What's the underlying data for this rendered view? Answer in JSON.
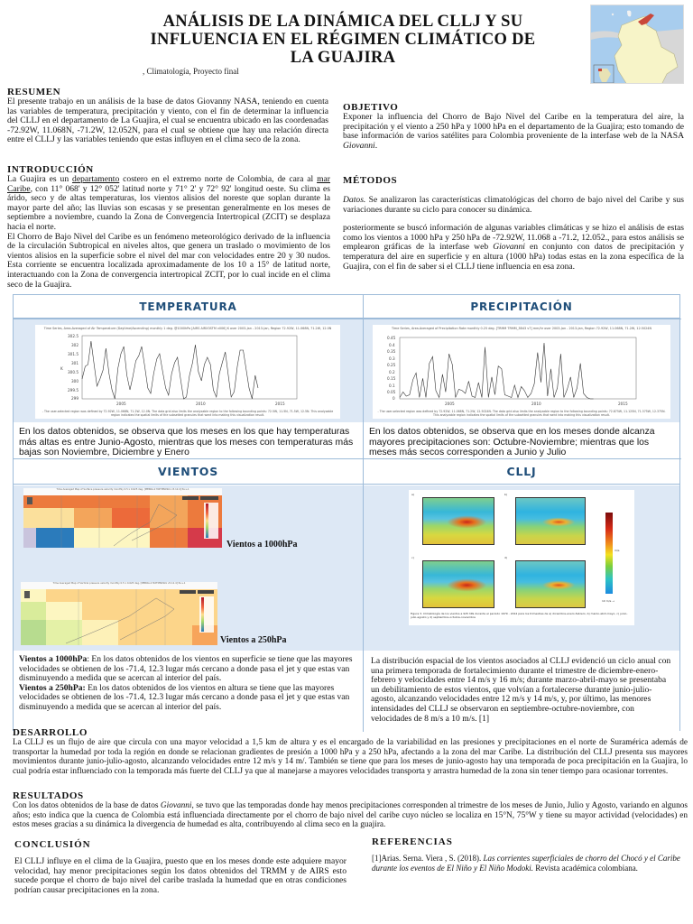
{
  "header": {
    "title_lines": [
      "ANÁLISIS DE LA DINÁMICA DEL CLLJ Y SU",
      "INFLUENCIA EN EL RÉGIMEN CLIMÁTICO DE",
      "LA GUAJIRA"
    ],
    "subtitle": ", Climatología, Proyecto final",
    "map_alt": "Mapa de Colombia con La Guajira resaltada"
  },
  "colors": {
    "panel_border": "#9dbbd9",
    "panel_body_bg": "#dde8f5",
    "panel_heading": "#1f4e79",
    "guajira_highlight": "#c9473a",
    "colombia_fill": "#f7f4c8",
    "sea": "#a8cdee"
  },
  "resumen": {
    "heading": "RESUMEN",
    "text": "El presente trabajo en un análisis de la base de datos Giovanny NASA, teniendo en cuenta las variables de temperatura, precipitación y viento, con el fin de determinar la influencia del CLLJ en el departamento de La Guajira, el cual se encuentra ubicado en las coordenadas -72.92W, 11.068N, -71.2W, 12.052N, para el cual se obtiene que hay una relación directa entre el CLLJ y las variables teniendo que estas influyen en el clima seco de la zona."
  },
  "introduccion": {
    "heading": "INTRODUCCIÓN",
    "p1_before_link1": "La Guajira es un ",
    "link1": "departamento",
    "p1_between": " costero en el extremo norte de Colombia, de cara al ",
    "link2": "mar Caribe",
    "p1_after": ", con 11° 068' y 12° 052' latitud norte y 71° 2' y 72° 92' longitud oeste. Su clima es árido, seco y de altas temperaturas, los vientos alisios del noreste que soplan durante la mayor parte del año; las lluvias son escasas y se presentan generalmente en los meses de septiembre a noviembre, cuando la Zona de Convergencia Intertropical (ZCIT) se desplaza hacia el norte.",
    "p2": "El Chorro de Bajo Nivel del Caribe es un fenómeno meteorológico derivado de la influencia de la circulación Subtropical en niveles altos, que genera un traslado o movimiento de los vientos alisios en la superficie sobre el nivel del mar con velocidades entre 20 y 30 nudos. Esta corriente se encuentra localizada aproximadamente de los 10 a 15° de latitud norte, interactuando con la Zona de convergencia intertropical ZCIT, por lo cual incide en el clima seco de la Guajira."
  },
  "objetivo": {
    "heading": "OBJETIVO",
    "text_before": "Exponer la influencia del Chorro de Bajo Nivel del Caribe en la temperatura del aire, la precipitación y el viento a 250 hPa y 1000 hPa en el departamento de la Guajira; esto tomando de base información de varios satélites para Colombia proveniente de la interfase web de la NASA ",
    "text_italic": "Giovanni",
    "text_after": "."
  },
  "metodos": {
    "heading": "MÉTODOS",
    "p1_italic": "Datos.",
    "p1": " Se analizaron las características climatológicas del chorro de bajo nivel del Caribe y sus variaciones durante su ciclo para conocer su dinámica.",
    "p2_before": "posteriormente se buscó información de algunas variables climáticas y se hizo el análisis de estas como los vientos a 1000 hPa y 250 hPa de -72.92W, 11.068 a -71.2, 12.052., para estos análisis se emplearon gráficas de la interfase web ",
    "p2_italic": "Giovanni",
    "p2_after": " en conjunto con datos de precipitación y temperatura del aire en superficie y en altura (1000 hPa) todas estas en la zona específica de la Guajira, con el fin de saber si el CLLJ tiene influencia en esa zona."
  },
  "panels": {
    "temperatura": {
      "heading": "TEMPERATURA",
      "chart_title": "Time Series, Area-Averaged of Air Temperature (Daytime/Ascending) monthly 1 deg. @1000hPa [AIRS AIRX3STM v006] K over 2003-Jan - 2013-Jan, Region 72.92W, 11.068N, 71.2W, 12.0N",
      "chart_footer": "- The user-selected region was defined by 72.92W, 11.068N, 71.2W, 12.0N. The data grid also limits the analyzable region to the following bounding points: 72.5W, 11.5N, 71.5W, 12.5N. This analyzable region indicates the spatial limits of the subsetted granules that went into making this visualization result.",
      "caption": "En los datos obtenidos, se observa que los meses en los que hay temperaturas más altas es entre Junio-Agosto, mientras que los meses con temperaturas más bajas son Noviembre, Diciembre y Enero"
    },
    "precipitacion": {
      "heading": "PRECIPITACIÓN",
      "chart_title": "Time Series, Area-Averaged of Precipitation Rate monthly 0.25 deg. [TRMM TRMM_3B43 v7] mm/hr over 2003-Jan - 2013-Jan, Region 72.92W, 11.068N, 71.2W, 12.5024N",
      "chart_footer": "- The user-selected region was defined by 72.92W, 11.068N, 71.2W, 12.5024N. The data grid also limits the analyzable region to the following bounding points: 72.875W, 11.125N, 71.375W, 12.375N. This analyzable region indicates the spatial limits of the subsetted granules that went into making this visualization result.",
      "caption": "En los datos obtenidos, se observa que en los meses donde alcanza mayores precipitaciones son: Octubre-Noviembre; mientras que los meses más secos corresponden a Junio y Julio"
    },
    "vientos": {
      "heading": "VIENTOS",
      "map1_title": "Time Averaged Map of Surface pressure velocity monthly 0.5 x 0.625 deg. [MERRA-2 M2TMNXSLV v5.12.4] Pa s-1",
      "map2_title": "Time Averaged Map of Vertical pressure velocity monthly 0.5 x 0.625 deg. [MERRA-2 M2TMNXSLV v5.12.4] Pa s-1",
      "label_1000": "Vientos a 1000hPa",
      "label_250": "Vientos a 250hPa",
      "caption_1000_bold": "Vientos a 1000hPa",
      "caption_1000": ": En los datos obtenidos de los vientos en superficie se tiene que las mayores velocidades se obtienen de los -71.4, 12.3 lugar más cercano a donde pasa el jet y que estas van disminuyendo a medida que se acercan al interior del país.",
      "caption_250_bold": "Vientos a 250hPa:",
      "caption_250": " En los datos obtenidos de los vientos en altura se tiene que las mayores velocidades se obtienen de los -71.4, 12.3 lugar más cercano a donde pasa el jet y que estas van disminuyendo a medida que se acercan al interior del país."
    },
    "cllj": {
      "heading": "CLLJ",
      "figure_caption": "Figura 3. Climatología de los vientos a 925 hPa durante el periodo 1979 - 2014 para los trimestres de a) diciembre-enero-febrero, b) marzo-abril-mayo, c) junio-julio-agosto y d) septiembre-octubre-noviembre",
      "panel_labels": [
        "a)",
        "b)",
        "c)",
        "d)"
      ],
      "lon_labels": [
        "90° W",
        "60° W"
      ],
      "lat_labels": [
        "30° N",
        "15° N",
        "0°",
        "15° S"
      ],
      "scale_ticks": [
        "20",
        "18",
        "16",
        "14",
        "12",
        "10",
        "8",
        "6",
        "4",
        "2",
        "0"
      ],
      "scale_unit": "m/s",
      "scale_footer": "10 m/s →",
      "caption": "La distribución espacial de los vientos asociados al CLLJ evidenció un ciclo anual con una primera temporada de fortalecimiento durante el trimestre de diciembre-enero-febrero y velocidades entre 14 m/s y 16 m/s; durante marzo-abril-mayo se presentaba un debilitamiento de estos vientos, que volvían a fortalecerse durante junio-julio-agosto, alcanzando velocidades entre 12 m/s y 14 m/s, y, por último, las menores intensidades del CLLJ se observaron en septiembre-octubre-noviembre, con velocidades de 8 m/s a 10 m/s. [1]"
    }
  },
  "desarrollo": {
    "heading": "DESARROLLO",
    "text": "La CLLJ es un flujo de aire que circula con una mayor velocidad a 1,5 km de altura y es el encargado de la variabilidad en las presiones y precipitaciones en el norte de Suramérica además de transportar la humedad por toda la región en donde se relacionan gradientes de presión a 1000 hPa y a 250 hPa, afectando a la zona del mar Caribe. La distribución del CLLJ presenta sus mayores movimientos durante junio-julio-agosto, alcanzando velocidades entre 12 m/s y 14 m/. También se tiene que para los meses de junio-agosto hay una temporada de poca precipitación en la Guajira, lo cual podría estar influenciado con la temporada más fuerte del CLLJ ya que al manejarse a mayores velocidades transporta y arrastra humedad de la zona sin tener tiempo para ocasionar torrentes."
  },
  "resultados": {
    "heading": "RESULTADOS",
    "text_before": "Con los datos obtenidos de la base de datos ",
    "text_italic": "Giovanni",
    "text_after": ", se tuvo que las temporadas donde hay menos precipitaciones corresponden al trimestre de los meses de Junio, Julio y Agosto, variando en algunos años; esto indica que la cuenca de Colombia está influenciada directamente por el chorro de bajo nivel del caribe cuyo núcleo se localiza en 15°N, 75°W y tiene su mayor actividad (velocidades) en estos meses gracias a su dinámica la divergencia de humedad es alta, contribuyendo al clima seco en la guajira."
  },
  "conclusion": {
    "heading": "CONCLUSIÓN",
    "text": "El CLLJ influye en el clima de la Guajira, puesto que en los meses donde este adquiere mayor velocidad, hay menor precipitaciones según los datos obtenidos del TRMM y de AIRS esto sucede porque el chorro de bajo nivel del caribe traslada la humedad que en otras condiciones podrían causar precipitaciones en la zona."
  },
  "referencias": {
    "heading": "REFERENCIAS",
    "ref1_before": "[1]Arias. Serna. Viera , S. (2018). ",
    "ref1_italic": "Las corrientes superficiales de chorro del Chocó y el Caribe durante los eventos de El Niño y El Niño Modoki.",
    "ref1_after": " Revista académica colombiana."
  },
  "chart_data": [
    {
      "type": "line",
      "title": "Time Series, Area-Averaged of Air Temperature (Daytime/Ascending) monthly 1 deg. @1000hPa [AIRS AIRX3STM v006] K over 2003-Jan - 2013-Jan",
      "xlabel": "",
      "ylabel": "K",
      "x_ticks": [
        "2005",
        "2010",
        "2015"
      ],
      "y_ticks": [
        299,
        299.5,
        300,
        300.5,
        301,
        301.5,
        302,
        302.5
      ],
      "ylim": [
        299,
        302.5
      ],
      "xlim": [
        2003,
        2015
      ],
      "grid": false,
      "series": [
        {
          "name": "Air Temperature",
          "x": [
            2003.0,
            2003.17,
            2003.33,
            2003.5,
            2003.67,
            2003.83,
            2004.0,
            2004.17,
            2004.33,
            2004.5,
            2004.67,
            2004.83,
            2005.0,
            2005.17,
            2005.33,
            2005.5,
            2005.67,
            2005.83,
            2006.0,
            2006.17,
            2006.33,
            2006.5,
            2006.67,
            2006.83,
            2007.0,
            2007.17,
            2007.33,
            2007.5,
            2007.67,
            2007.83,
            2008.0,
            2008.17,
            2008.33,
            2008.5,
            2008.67,
            2008.83,
            2009.0,
            2009.17,
            2009.33,
            2009.5,
            2009.67,
            2009.83,
            2010.0,
            2010.17,
            2010.33,
            2010.5,
            2010.67,
            2010.83,
            2011.0,
            2011.17,
            2011.33,
            2011.5,
            2011.67,
            2011.83,
            2012.0,
            2012.17,
            2012.33,
            2012.5,
            2012.67,
            2012.83
          ],
          "values": [
            300.1,
            300.8,
            300.9,
            302.2,
            300.9,
            299.7,
            300.1,
            300.6,
            301.8,
            300.4,
            299.5,
            299.0,
            300.7,
            301.5,
            301.9,
            300.3,
            299.5,
            300.2,
            301.1,
            301.4,
            301.9,
            300.8,
            299.6,
            299.3,
            300.4,
            301.2,
            301.5,
            300.5,
            299.6,
            299.2,
            300.4,
            301.0,
            301.3,
            300.1,
            299.0,
            299.1,
            300.3,
            301.0,
            302.0,
            300.5,
            300.0,
            300.9,
            301.3,
            300.9,
            299.5,
            299.1,
            300.4,
            301.0,
            301.6,
            300.3,
            299.1,
            299.4,
            300.8,
            301.7,
            301.7,
            300.6,
            299.6,
            299.0,
            300.3,
            299.6
          ]
        }
      ]
    },
    {
      "type": "line",
      "title": "Time Series, Area-Averaged of Precipitation Rate monthly 0.25 deg. [TRMM TRMM_3B43 v7] mm/hr over 2003-Jan - 2013-Jan",
      "xlabel": "",
      "ylabel": "mm/hr",
      "x_ticks": [
        "2005",
        "2010",
        "2015"
      ],
      "y_ticks": [
        0,
        0.05,
        0.1,
        0.15,
        0.2,
        0.25,
        0.3,
        0.35,
        0.4,
        0.45
      ],
      "ylim": [
        0,
        0.45
      ],
      "xlim": [
        2003,
        2015
      ],
      "grid": false,
      "series": [
        {
          "name": "Precipitation Rate",
          "x": [
            2003.0,
            2003.17,
            2003.33,
            2003.5,
            2003.67,
            2003.83,
            2004.0,
            2004.17,
            2004.33,
            2004.5,
            2004.67,
            2004.83,
            2005.0,
            2005.17,
            2005.33,
            2005.5,
            2005.67,
            2005.83,
            2006.0,
            2006.17,
            2006.33,
            2006.5,
            2006.67,
            2006.83,
            2007.0,
            2007.17,
            2007.33,
            2007.5,
            2007.67,
            2007.83,
            2008.0,
            2008.17,
            2008.33,
            2008.5,
            2008.67,
            2008.83,
            2009.0,
            2009.17,
            2009.33,
            2009.5,
            2009.67,
            2009.83,
            2010.0,
            2010.17,
            2010.33,
            2010.5,
            2010.67,
            2010.83,
            2011.0,
            2011.17,
            2011.33,
            2011.5,
            2011.67,
            2011.83,
            2012.0,
            2012.17,
            2012.33,
            2012.5,
            2012.67,
            2012.83
          ],
          "values": [
            0.01,
            0.05,
            0.02,
            0.03,
            0.14,
            0.19,
            0.01,
            0.15,
            0.01,
            0.26,
            0.31,
            0.06,
            0.01,
            0.18,
            0.05,
            0.33,
            0.25,
            0.01,
            0.07,
            0.06,
            0.04,
            0.13,
            0.02,
            0.01,
            0.12,
            0.01,
            0.38,
            0.01,
            0.16,
            0.03,
            0.24,
            0.22,
            0.03,
            0.02,
            0.01,
            0.1,
            0.01,
            0.09,
            0.06,
            0.01,
            0.04,
            0.11,
            0.34,
            0.12,
            0.41,
            0.02,
            0.22,
            0.01,
            0.08,
            0.33,
            0.01,
            0.07,
            0.16,
            0.01,
            0.08,
            0.26,
            0.04,
            0.01,
            0.0,
            0.0
          ]
        }
      ]
    }
  ]
}
